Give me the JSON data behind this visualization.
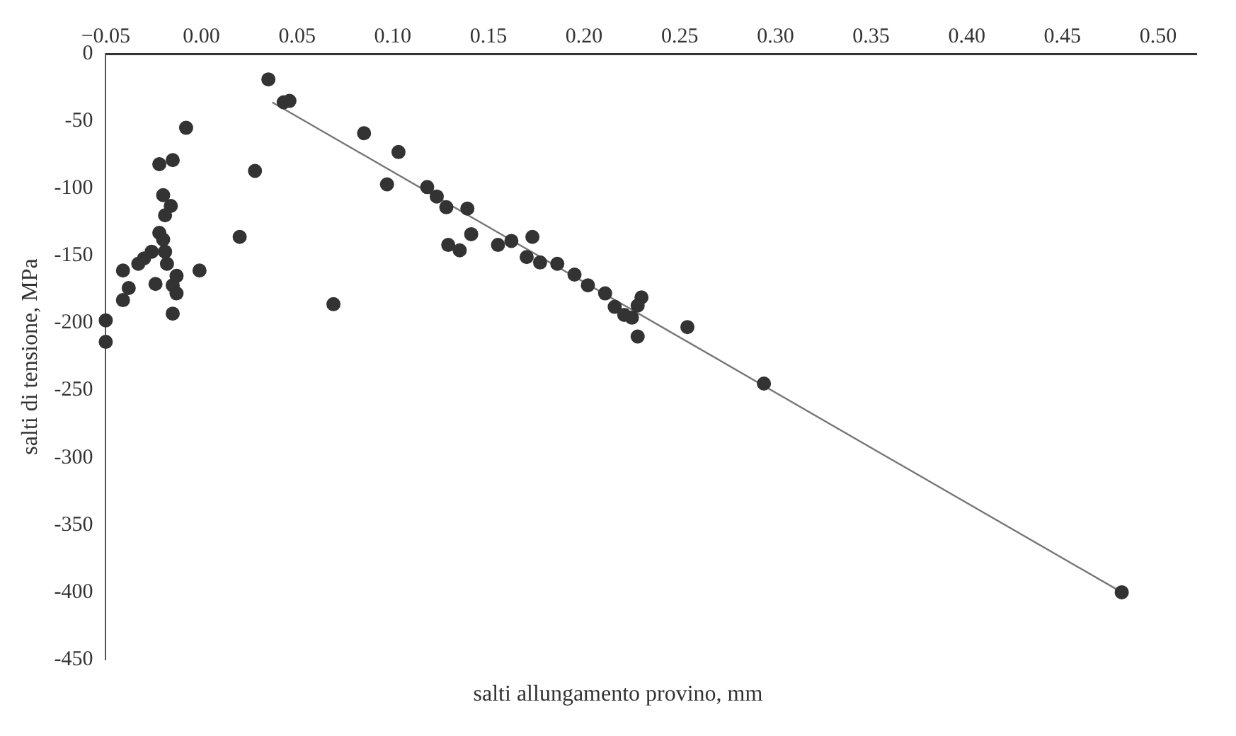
{
  "chart_data": {
    "type": "scatter",
    "xlabel": "salti allungamento provino, mm",
    "ylabel": "salti di tensione, MPa",
    "xlim": [
      -0.05,
      0.52
    ],
    "xticks": [
      {
        "value": -0.05,
        "label": "−0.05"
      },
      {
        "value": 0,
        "label": "0.00"
      },
      {
        "value": 0.05,
        "label": "0.05"
      },
      {
        "value": 0.1,
        "label": "0.10"
      },
      {
        "value": 0.15,
        "label": "0.15"
      },
      {
        "value": 0.2,
        "label": "0.20"
      },
      {
        "value": 0.25,
        "label": "0.25"
      },
      {
        "value": 0.3,
        "label": "0.30"
      },
      {
        "value": 0.35,
        "label": "0.35"
      },
      {
        "value": 0.4,
        "label": "0.40"
      },
      {
        "value": 0.45,
        "label": "0.45"
      },
      {
        "value": 0.5,
        "label": "0.50"
      }
    ],
    "ylim": [
      -450,
      0
    ],
    "yticks": [
      0,
      -50,
      -100,
      -150,
      -200,
      -250,
      -300,
      -350,
      -400,
      -450
    ],
    "grid": false,
    "legend": false,
    "marker": "circle",
    "series": [
      {
        "color": "#333333",
        "x": [
          0.035,
          0.046,
          0.043,
          -0.008,
          -0.015,
          -0.022,
          0.028,
          -0.02,
          -0.016,
          -0.019,
          -0.022,
          -0.02,
          -0.026,
          -0.03,
          -0.019,
          -0.033,
          -0.018,
          -0.013,
          -0.024,
          -0.015,
          -0.013,
          -0.041,
          -0.038,
          -0.041,
          -0.015,
          -0.05,
          -0.05,
          -0.001,
          0.02,
          0.069,
          0.085,
          0.103,
          0.097,
          0.118,
          0.123,
          0.128,
          0.139,
          0.141,
          0.129,
          0.135,
          0.155,
          0.162,
          0.173,
          0.17,
          0.177,
          0.186,
          0.195,
          0.202,
          0.211,
          0.216,
          0.221,
          0.225,
          0.23,
          0.228,
          0.228,
          0.254,
          0.294,
          0.481
        ],
        "values": [
          -19,
          -35,
          -36,
          -55,
          -79,
          -82,
          -87,
          -105,
          -113,
          -120,
          -133,
          -138,
          -147,
          -152,
          -147,
          -156,
          -156,
          -165,
          -171,
          -172,
          -178,
          -161,
          -174,
          -183,
          -193,
          -198,
          -214,
          -161,
          -136,
          -186,
          -59,
          -73,
          -97,
          -99,
          -106,
          -114,
          -115,
          -134,
          -142,
          -146,
          -142,
          -139,
          -136,
          -151,
          -155,
          -156,
          -164,
          -172,
          -178,
          -188,
          -194,
          -196,
          -181,
          -187,
          -210,
          -203,
          -245,
          -400
        ]
      },
      {
        "type": "line",
        "color": "#777777",
        "line_style": "solid",
        "marker": "none",
        "x": [
          0.037,
          0.481
        ],
        "values": [
          -36,
          -400
        ]
      }
    ]
  }
}
